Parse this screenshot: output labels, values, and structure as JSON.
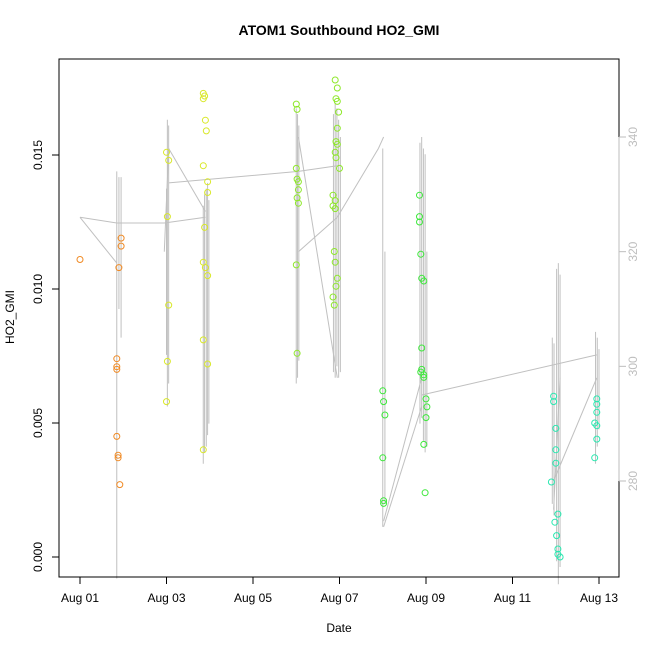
{
  "chart_data": {
    "type": "scatter",
    "title": "ATOM1 Southbound HO2_GMI",
    "xlabel": "Date",
    "ylabel": "HO2_GMI",
    "x_unit": "date",
    "xlim": [
      "2016-08-01",
      "2016-08-13"
    ],
    "ylim": [
      0,
      0.0175
    ],
    "x_ticks": [
      "Aug 01",
      "Aug 03",
      "Aug 05",
      "Aug 07",
      "Aug 09",
      "Aug 11",
      "Aug 13"
    ],
    "y_ticks": [
      "0.000",
      "0.005",
      "0.010",
      "0.015"
    ],
    "y2_ticks": [
      "280",
      "300",
      "320",
      "340"
    ],
    "y2_lim": [
      265,
      350
    ],
    "grid": false,
    "colors": {
      "axis": "#000000",
      "secondary_axis": "#bebebe",
      "altitude_line": "#c0c0c0"
    },
    "series": [
      {
        "color": "#f08a24",
        "points": [
          [
            "2016-08-01",
            0.0111
          ],
          [
            "2016-08-01.9",
            0.0108
          ],
          [
            "2016-08-01.95",
            0.0119
          ],
          [
            "2016-08-01.95",
            0.0116
          ],
          [
            "2016-08-01.85",
            0.0074
          ],
          [
            "2016-08-01.85",
            0.0071
          ],
          [
            "2016-08-01.85",
            0.007
          ],
          [
            "2016-08-01.85",
            0.0045
          ],
          [
            "2016-08-01.88",
            0.0038
          ],
          [
            "2016-08-01.88",
            0.0037
          ],
          [
            "2016-08-01.92",
            0.0027
          ]
        ]
      },
      {
        "color": "#d9e82a",
        "points": [
          [
            "2016-08-03",
            0.0151
          ],
          [
            "2016-08-03.05",
            0.0148
          ],
          [
            "2016-08-03.02",
            0.0127
          ],
          [
            "2016-08-03.05",
            0.0094
          ],
          [
            "2016-08-03.02",
            0.0073
          ],
          [
            "2016-08-03",
            0.0058
          ],
          [
            "2016-08-03.85",
            0.0173
          ],
          [
            "2016-08-03.88",
            0.0172
          ],
          [
            "2016-08-03.85",
            0.0171
          ],
          [
            "2016-08-03.9",
            0.0163
          ],
          [
            "2016-08-03.92",
            0.0159
          ],
          [
            "2016-08-03.85",
            0.0146
          ],
          [
            "2016-08-03.95",
            0.014
          ],
          [
            "2016-08-03.95",
            0.0136
          ],
          [
            "2016-08-03.88",
            0.0123
          ],
          [
            "2016-08-03.85",
            0.011
          ],
          [
            "2016-08-03.95",
            0.0105
          ],
          [
            "2016-08-03.9",
            0.0108
          ],
          [
            "2016-08-03.95",
            0.0072
          ],
          [
            "2016-08-03.85",
            0.0081
          ],
          [
            "2016-08-03.85",
            0.004
          ]
        ]
      },
      {
        "color": "#8ee82a",
        "points": [
          [
            "2016-08-06",
            0.0169
          ],
          [
            "2016-08-06.02",
            0.0167
          ],
          [
            "2016-08-06",
            0.0145
          ],
          [
            "2016-08-06.02",
            0.0141
          ],
          [
            "2016-08-06.05",
            0.014
          ],
          [
            "2016-08-06.05",
            0.0137
          ],
          [
            "2016-08-06.02",
            0.0134
          ],
          [
            "2016-08-06.05",
            0.0132
          ],
          [
            "2016-08-06",
            0.0109
          ],
          [
            "2016-08-06.02",
            0.0076
          ],
          [
            "2016-08-06.9",
            0.0178
          ],
          [
            "2016-08-06.95",
            0.0175
          ],
          [
            "2016-08-06.92",
            0.0171
          ],
          [
            "2016-08-06.95",
            0.017
          ],
          [
            "2016-08-06.98",
            0.0166
          ],
          [
            "2016-08-06.95",
            0.016
          ],
          [
            "2016-08-06.92",
            0.0155
          ],
          [
            "2016-08-06.95",
            0.0154
          ],
          [
            "2016-08-06.9",
            0.0151
          ],
          [
            "2016-08-06.92",
            0.0149
          ],
          [
            "2016-08-07",
            0.0145
          ],
          [
            "2016-08-06.85",
            0.0135
          ],
          [
            "2016-08-06.9",
            0.0133
          ],
          [
            "2016-08-06.85",
            0.0131
          ],
          [
            "2016-08-06.9",
            0.013
          ],
          [
            "2016-08-06.88",
            0.0114
          ],
          [
            "2016-08-06.9",
            0.011
          ],
          [
            "2016-08-06.95",
            0.0104
          ],
          [
            "2016-08-06.92",
            0.0101
          ],
          [
            "2016-08-06.85",
            0.0097
          ],
          [
            "2016-08-06.88",
            0.0094
          ]
        ]
      },
      {
        "color": "#3ee83c",
        "points": [
          [
            "2016-08-08",
            0.0062
          ],
          [
            "2016-08-08.02",
            0.0058
          ],
          [
            "2016-08-08.05",
            0.0053
          ],
          [
            "2016-08-08",
            0.0037
          ],
          [
            "2016-08-08.02",
            0.0021
          ],
          [
            "2016-08-08.02",
            0.002
          ],
          [
            "2016-08-08.85",
            0.0135
          ],
          [
            "2016-08-08.85",
            0.0127
          ],
          [
            "2016-08-08.85",
            0.0125
          ],
          [
            "2016-08-08.88",
            0.0113
          ],
          [
            "2016-08-08.9",
            0.0104
          ],
          [
            "2016-08-08.95",
            0.0103
          ],
          [
            "2016-08-08.9",
            0.0078
          ],
          [
            "2016-08-08.9",
            0.007
          ],
          [
            "2016-08-08.88",
            0.0069
          ],
          [
            "2016-08-08.95",
            0.0068
          ],
          [
            "2016-08-08.95",
            0.0067
          ],
          [
            "2016-08-09",
            0.0059
          ],
          [
            "2016-08-09.02",
            0.0056
          ],
          [
            "2016-08-09",
            0.0052
          ],
          [
            "2016-08-08.95",
            0.0042
          ],
          [
            "2016-08-08.98",
            0.0024
          ]
        ]
      },
      {
        "color": "#2ae8b0",
        "points": [
          [
            "2016-08-11.95",
            0.006
          ],
          [
            "2016-08-11.95",
            0.0058
          ],
          [
            "2016-08-12",
            0.0048
          ],
          [
            "2016-08-12",
            0.004
          ],
          [
            "2016-08-12",
            0.0035
          ],
          [
            "2016-08-11.9",
            0.0028
          ],
          [
            "2016-08-12.05",
            0.0016
          ],
          [
            "2016-08-11.98",
            0.0013
          ],
          [
            "2016-08-12.02",
            0.0008
          ],
          [
            "2016-08-12.05",
            0.0003
          ],
          [
            "2016-08-12.05",
            0.0001
          ],
          [
            "2016-08-12.1",
            0.0
          ],
          [
            "2016-08-12.95",
            0.0059
          ],
          [
            "2016-08-12.95",
            0.0057
          ],
          [
            "2016-08-12.95",
            0.0054
          ],
          [
            "2016-08-12.9",
            0.005
          ],
          [
            "2016-08-12.95",
            0.0049
          ],
          [
            "2016-08-12.95",
            0.0044
          ],
          [
            "2016-08-12.9",
            0.0037
          ]
        ]
      }
    ],
    "altitude_segments": [
      {
        "x": [
          1.0,
          1.85,
          2.95,
          3.9
        ],
        "y": [
          326,
          325,
          325,
          326
        ]
      },
      {
        "x": [
          1.0,
          1.85
        ],
        "y": [
          326,
          318
        ]
      },
      {
        "x": [
          2.95,
          3.05
        ],
        "y": [
          320,
          338
        ]
      },
      {
        "x": [
          3.05,
          3.9
        ],
        "y": [
          338,
          327
        ]
      },
      {
        "x": [
          3.05,
          6.05,
          6.95
        ],
        "y": [
          332,
          334,
          335
        ]
      },
      {
        "x": [
          6.05,
          6.95
        ],
        "y": [
          320,
          326
        ]
      },
      {
        "x": [
          6.95,
          7.9
        ],
        "y": [
          326,
          338
        ]
      },
      {
        "x": [
          7.9,
          8.02
        ],
        "y": [
          338,
          340
        ]
      },
      {
        "x": [
          6.05,
          6.95
        ],
        "y": [
          340,
          298
        ]
      },
      {
        "x": [
          8.02,
          8.9
        ],
        "y": [
          272,
          293
        ]
      },
      {
        "x": [
          8.02,
          8.9
        ],
        "y": [
          273,
          298
        ]
      },
      {
        "x": [
          8.9,
          12.95
        ],
        "y": [
          295,
          302
        ]
      },
      {
        "x": [
          11.95,
          12.95
        ],
        "y": [
          280,
          298
        ]
      },
      {
        "x": [
          11.95,
          12.1
        ],
        "y": [
          275,
          298
        ]
      }
    ],
    "altitude_spikes": [
      {
        "x": 1.85,
        "y": [
          263,
          334
        ]
      },
      {
        "x": 1.9,
        "y": [
          310,
          333
        ]
      },
      {
        "x": 1.95,
        "y": [
          305,
          333
        ]
      },
      {
        "x": 3.02,
        "y": [
          293,
          343
        ]
      },
      {
        "x": 3.05,
        "y": [
          297,
          342
        ]
      },
      {
        "x": 3.0,
        "y": [
          302,
          331
        ]
      },
      {
        "x": 3.85,
        "y": [
          283,
          328
        ]
      },
      {
        "x": 3.88,
        "y": [
          285,
          330
        ]
      },
      {
        "x": 3.92,
        "y": [
          286,
          331
        ]
      },
      {
        "x": 3.95,
        "y": [
          288,
          332
        ]
      },
      {
        "x": 3.98,
        "y": [
          290,
          329
        ]
      },
      {
        "x": 6.0,
        "y": [
          297,
          345
        ]
      },
      {
        "x": 6.03,
        "y": [
          298,
          344
        ]
      },
      {
        "x": 6.06,
        "y": [
          301,
          342
        ]
      },
      {
        "x": 6.86,
        "y": [
          299,
          344
        ]
      },
      {
        "x": 6.9,
        "y": [
          298,
          346
        ]
      },
      {
        "x": 6.94,
        "y": [
          300,
          345
        ]
      },
      {
        "x": 6.98,
        "y": [
          298,
          343
        ]
      },
      {
        "x": 7.02,
        "y": [
          299,
          340
        ]
      },
      {
        "x": 8.0,
        "y": [
          272,
          338
        ]
      },
      {
        "x": 8.05,
        "y": [
          276,
          320
        ]
      },
      {
        "x": 8.86,
        "y": [
          290,
          339
        ]
      },
      {
        "x": 8.9,
        "y": [
          291,
          340
        ]
      },
      {
        "x": 8.94,
        "y": [
          287,
          338
        ]
      },
      {
        "x": 8.98,
        "y": [
          285,
          337
        ]
      },
      {
        "x": 9.02,
        "y": [
          286,
          320
        ]
      },
      {
        "x": 11.92,
        "y": [
          276,
          305
        ]
      },
      {
        "x": 11.96,
        "y": [
          274,
          304
        ]
      },
      {
        "x": 12.02,
        "y": [
          266,
          317
        ]
      },
      {
        "x": 12.06,
        "y": [
          262,
          318
        ]
      },
      {
        "x": 12.1,
        "y": [
          265,
          316
        ]
      },
      {
        "x": 12.92,
        "y": [
          283,
          306
        ]
      },
      {
        "x": 12.96,
        "y": [
          286,
          305
        ]
      },
      {
        "x": 13.0,
        "y": [
          289,
          303
        ]
      }
    ]
  }
}
